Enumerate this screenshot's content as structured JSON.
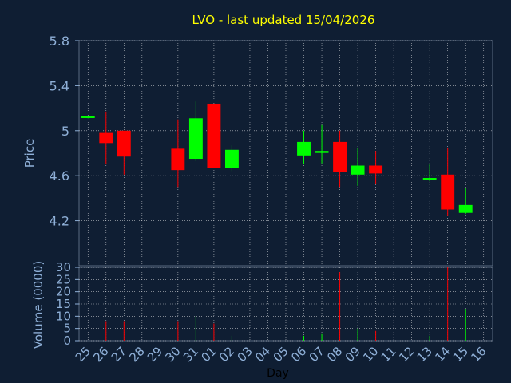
{
  "chart_data": {
    "type": "candlestick",
    "title": "LVO - last updated 15/04/2026",
    "xlabel": "Day",
    "ylabel": "Price",
    "ylim": [
      3.8,
      5.8
    ],
    "yticks": [
      "5.8",
      "5.4",
      "5",
      "4.6",
      "4.2"
    ],
    "volume_label": "Volume (0000)",
    "volume_ylim": [
      0,
      30
    ],
    "volume_ticks": [
      "30",
      "25",
      "20",
      "15",
      "10",
      "5",
      "0"
    ],
    "grid": true,
    "colors": {
      "background": "#0f1e33",
      "title": "#ffff00",
      "axis_text": "#8fb0d8",
      "up": "#00ff00",
      "down": "#ff0000",
      "grid": "#ffffff"
    },
    "days": [
      "25",
      "26",
      "27",
      "28",
      "29",
      "30",
      "31",
      "01",
      "02",
      "03",
      "04",
      "05",
      "06",
      "07",
      "08",
      "09",
      "10",
      "11",
      "12",
      "13",
      "14",
      "15",
      "16"
    ],
    "candles": [
      {
        "day": "25",
        "open": 5.12,
        "high": 5.13,
        "low": 5.11,
        "close": 5.13,
        "volume": 0
      },
      {
        "day": "26",
        "open": 4.98,
        "high": 5.17,
        "low": 4.7,
        "close": 4.89,
        "volume": 8
      },
      {
        "day": "27",
        "open": 5.0,
        "high": 5.0,
        "low": 4.61,
        "close": 4.77,
        "volume": 8
      },
      {
        "day": "30",
        "open": 4.84,
        "high": 5.1,
        "low": 4.5,
        "close": 4.65,
        "volume": 8
      },
      {
        "day": "31",
        "open": 4.75,
        "high": 5.26,
        "low": 4.73,
        "close": 5.11,
        "volume": 10
      },
      {
        "day": "01",
        "open": 5.24,
        "high": 5.24,
        "low": 4.67,
        "close": 4.67,
        "volume": 7
      },
      {
        "day": "02",
        "open": 4.67,
        "high": 4.87,
        "low": 4.64,
        "close": 4.83,
        "volume": 2
      },
      {
        "day": "06",
        "open": 4.78,
        "high": 5.0,
        "low": 4.7,
        "close": 4.9,
        "volume": 2
      },
      {
        "day": "07",
        "open": 4.81,
        "high": 5.05,
        "low": 4.71,
        "close": 4.82,
        "volume": 3
      },
      {
        "day": "08",
        "open": 4.9,
        "high": 5.0,
        "low": 4.5,
        "close": 4.63,
        "volume": 28
      },
      {
        "day": "09",
        "open": 4.61,
        "high": 4.85,
        "low": 4.51,
        "close": 4.69,
        "volume": 5
      },
      {
        "day": "10",
        "open": 4.69,
        "high": 4.82,
        "low": 4.53,
        "close": 4.62,
        "volume": 4
      },
      {
        "day": "13",
        "open": 4.56,
        "high": 4.7,
        "low": 4.55,
        "close": 4.58,
        "volume": 2
      },
      {
        "day": "14",
        "open": 4.61,
        "high": 4.85,
        "low": 4.24,
        "close": 4.3,
        "volume": 30
      },
      {
        "day": "15",
        "open": 4.27,
        "high": 4.49,
        "low": 4.26,
        "close": 4.34,
        "volume": 13
      }
    ]
  }
}
